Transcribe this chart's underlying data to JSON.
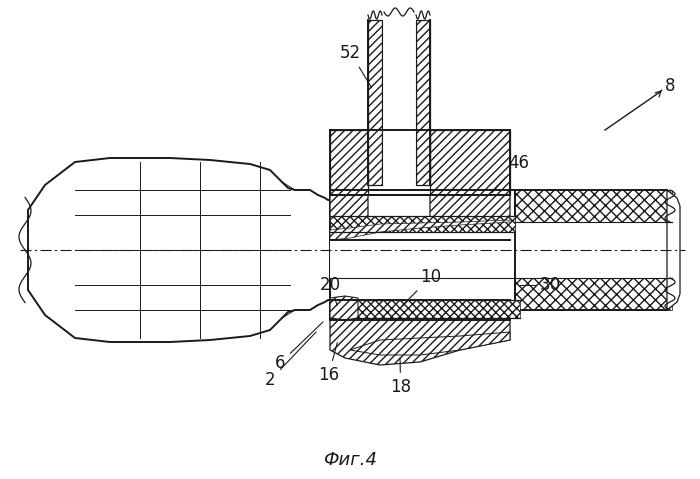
{
  "title": "Фиг.4",
  "bg_color": "#ffffff",
  "line_color": "#1a1a1a",
  "figure_width": 7.0,
  "figure_height": 4.79,
  "dpi": 100
}
